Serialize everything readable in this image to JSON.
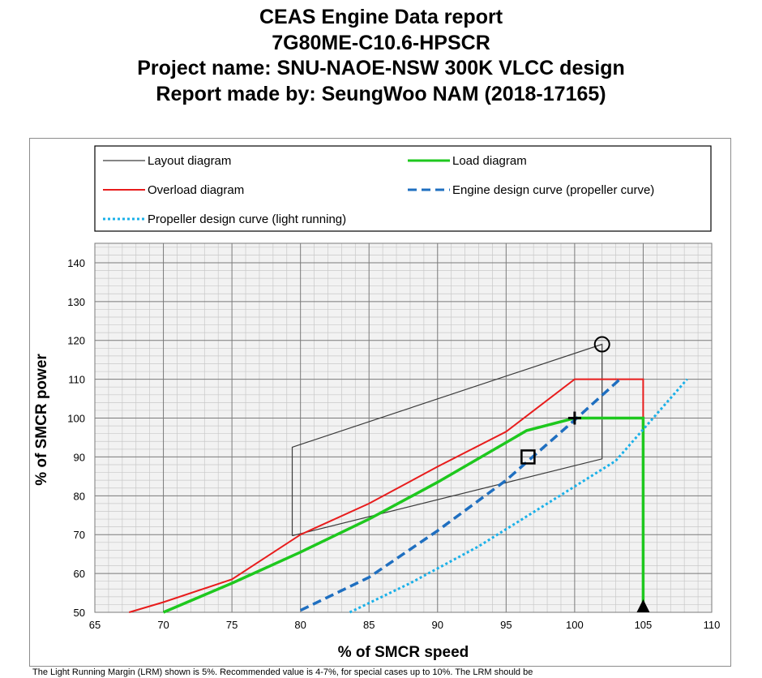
{
  "report": {
    "title_lines": [
      "CEAS Engine Data report",
      "7G80ME-C10.6-HPSCR",
      "Project name: SNU-NAOE-NSW 300K VLCC design",
      "Report made by: SeungWoo NAM (2018-17165)"
    ]
  },
  "chart_data": {
    "type": "line",
    "xlabel": "% of SMCR speed",
    "ylabel": "% of SMCR power",
    "xlim": [
      65,
      110
    ],
    "ylim": [
      50,
      145
    ],
    "x_ticks": [
      65,
      70,
      75,
      80,
      85,
      90,
      95,
      100,
      105,
      110
    ],
    "y_ticks": [
      50,
      60,
      70,
      80,
      90,
      100,
      110,
      120,
      130,
      140
    ],
    "grid": true,
    "legend_position": "top",
    "legend": [
      {
        "label": "Layout diagram",
        "color": "#3c3c3c",
        "style": "solid"
      },
      {
        "label": "Load diagram",
        "color": "#1ec81e",
        "style": "solid"
      },
      {
        "label": "Overload diagram",
        "color": "#e81c1c",
        "style": "solid"
      },
      {
        "label": "Engine design curve (propeller curve)",
        "color": "#1f6fc0",
        "style": "dashed"
      },
      {
        "label": "Propeller design curve (light running)",
        "color": "#1ab0e8",
        "style": "dotted"
      }
    ],
    "series": [
      {
        "name": "Layout diagram",
        "points": [
          [
            79.4,
            69.7
          ],
          [
            102,
            89.5
          ],
          [
            102,
            119
          ],
          [
            79.4,
            92.5
          ],
          [
            79.4,
            69.7
          ]
        ]
      },
      {
        "name": "Overload diagram",
        "points": [
          [
            67.5,
            50
          ],
          [
            70,
            52.6
          ],
          [
            75,
            58.5
          ],
          [
            80,
            70
          ],
          [
            85,
            78
          ],
          [
            90,
            87.5
          ],
          [
            95,
            96.5
          ],
          [
            100,
            110
          ],
          [
            105,
            110
          ],
          [
            105,
            100
          ]
        ]
      },
      {
        "name": "Load diagram",
        "points": [
          [
            70,
            50
          ],
          [
            75,
            57.5
          ],
          [
            80,
            65.5
          ],
          [
            85,
            74
          ],
          [
            90,
            83.5
          ],
          [
            96.5,
            96.8
          ],
          [
            100,
            100
          ],
          [
            105,
            100
          ],
          [
            105,
            50
          ]
        ]
      },
      {
        "name": "Engine design curve (propeller curve)",
        "points": [
          [
            80,
            50.5
          ],
          [
            85,
            59
          ],
          [
            90,
            71
          ],
          [
            95,
            84
          ],
          [
            100,
            99.5
          ],
          [
            103.3,
            110
          ]
        ]
      },
      {
        "name": "Propeller design curve (light running)",
        "points": [
          [
            83.6,
            50
          ],
          [
            88,
            57.5
          ],
          [
            93,
            67
          ],
          [
            98,
            78
          ],
          [
            103,
            89
          ],
          [
            108.2,
            110
          ]
        ]
      }
    ],
    "markers": [
      {
        "name": "layout-max-point",
        "shape": "circle",
        "x": 102,
        "y": 119
      },
      {
        "name": "smcr-point",
        "shape": "plus",
        "x": 100,
        "y": 100
      },
      {
        "name": "service-point",
        "shape": "square",
        "x": 96.6,
        "y": 90
      },
      {
        "name": "max-speed-point",
        "shape": "triangle",
        "x": 105,
        "y": 50
      }
    ]
  },
  "footnote": "The Light Running Margin (LRM) shown is 5%. Recommended value is 4-7%, for special cases up to 10%. The LRM should be"
}
